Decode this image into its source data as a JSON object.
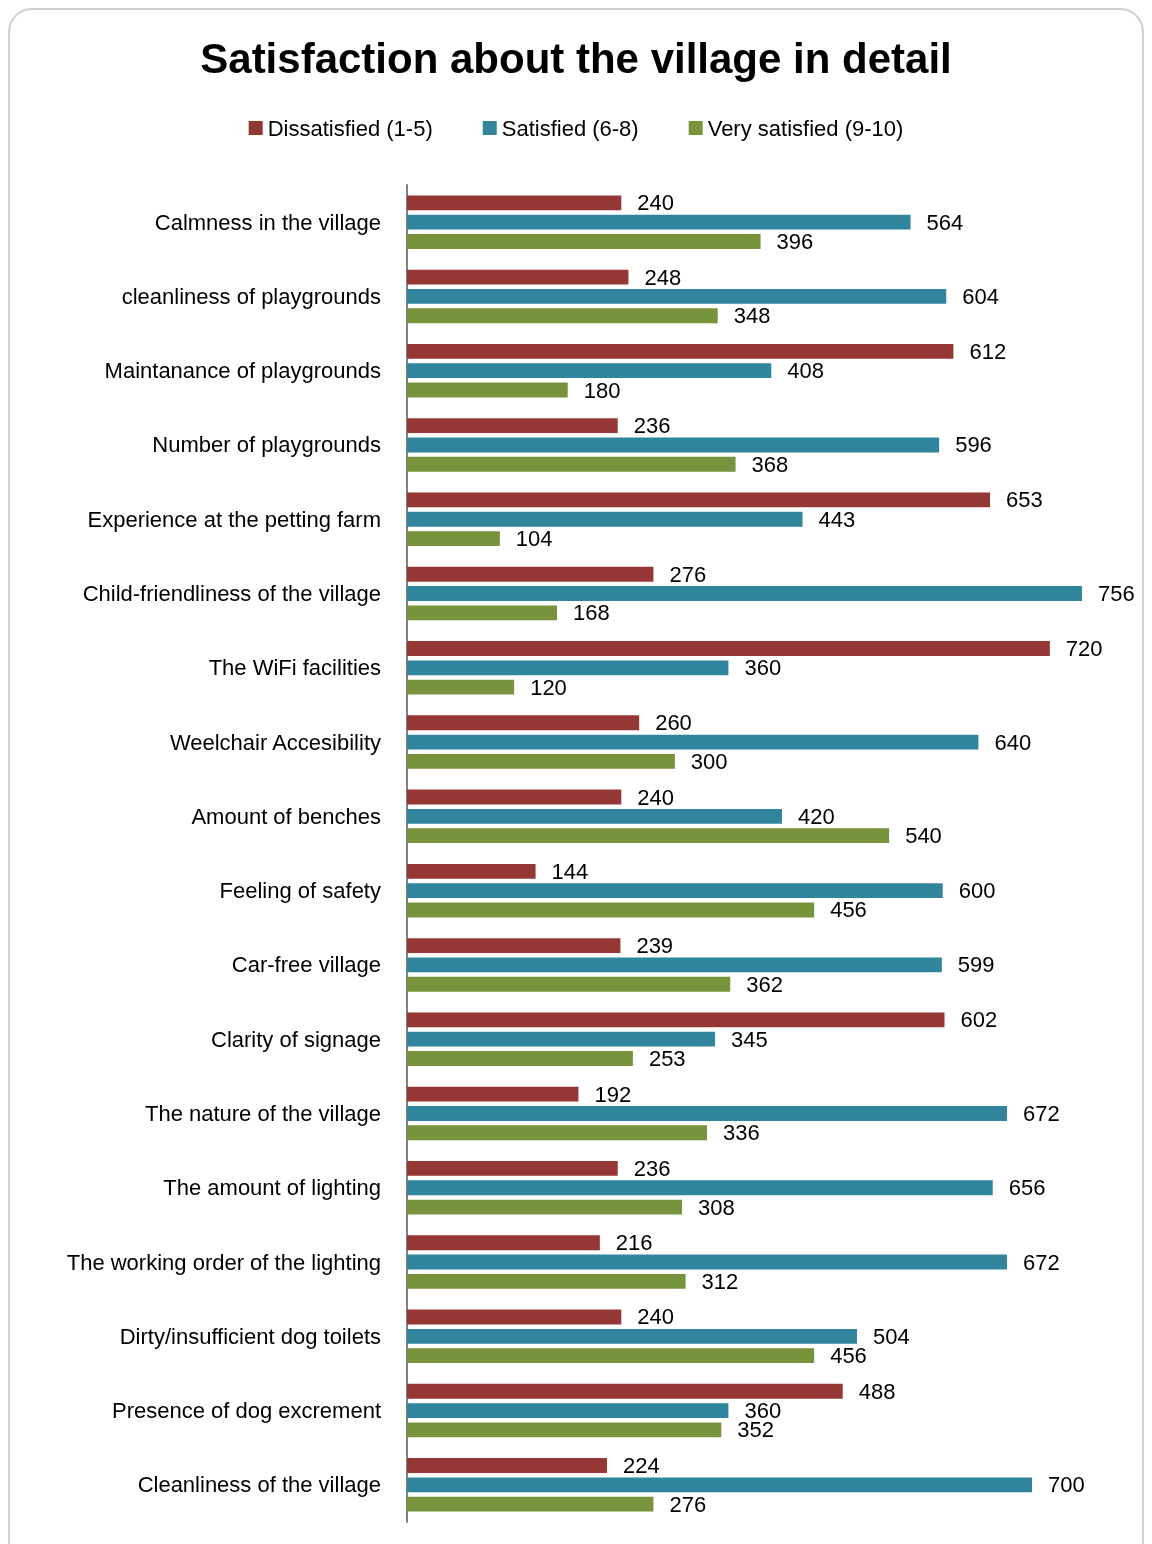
{
  "chart_data": {
    "type": "bar",
    "orientation": "horizontal",
    "title": "Satisfaction about the village in detail",
    "categories": [
      "Calmness in the village",
      "cleanliness of playgrounds",
      "Maintanance of playgrounds",
      "Number of playgrounds",
      "Experience at the petting farm",
      "Child-friendliness of the village",
      "The WiFi facilities",
      "Weelchair Accesibility",
      "Amount of benches",
      "Feeling of safety",
      "Car-free village",
      "Clarity of signage",
      "The nature of the village",
      "The amount of lighting",
      "The working order of the lighting",
      "Dirty/insufficient dog toilets",
      "Presence of dog excrement",
      "Cleanliness of the village"
    ],
    "series": [
      {
        "name": "Dissatisfied (1-5)",
        "color": "#953735",
        "values": [
          240,
          248,
          612,
          236,
          653,
          276,
          720,
          260,
          240,
          144,
          239,
          602,
          192,
          236,
          216,
          240,
          488,
          224
        ]
      },
      {
        "name": "Satisfied (6-8)",
        "color": "#31859c",
        "values": [
          564,
          604,
          408,
          596,
          443,
          756,
          360,
          640,
          420,
          600,
          599,
          345,
          672,
          656,
          672,
          504,
          360,
          700
        ]
      },
      {
        "name": "Very satisfied (9-10)",
        "color": "#77933c",
        "values": [
          396,
          348,
          180,
          368,
          104,
          168,
          120,
          300,
          540,
          456,
          362,
          253,
          336,
          308,
          312,
          456,
          352,
          276
        ]
      }
    ],
    "data_labels": true,
    "legend": "top"
  }
}
